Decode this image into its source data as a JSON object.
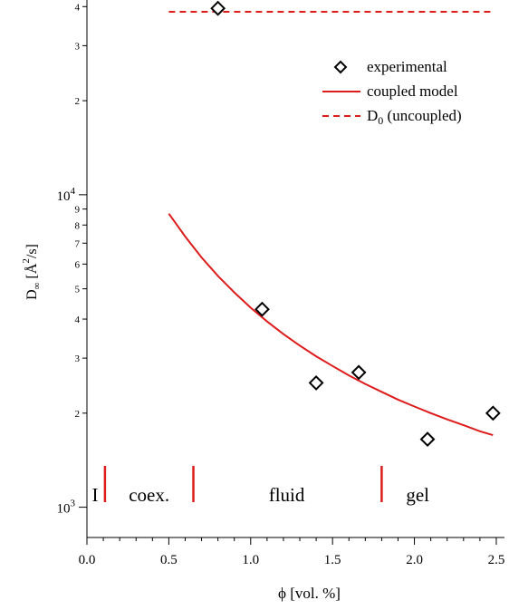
{
  "chart_data": {
    "type": "scatter",
    "xlabel": "ϕ [vol. %]",
    "ylabel": {
      "main": "D",
      "sub": "∞",
      "bracket_open": "[",
      "unit_letter": "Å",
      "unit_sup": "2",
      "unit_rest": "/s]"
    },
    "x_axis": {
      "range": [
        0,
        2.55
      ],
      "ticks": [
        "0.0",
        "0.5",
        "1.0",
        "1.5",
        "2.0",
        "2.5"
      ],
      "tick_values": [
        0,
        0.5,
        1.0,
        1.5,
        2.0,
        2.5
      ]
    },
    "y_axis": {
      "scale": "log",
      "range": [
        800,
        42000
      ],
      "decade_labels": [
        {
          "value": 1000,
          "base": "10",
          "exp": "3"
        },
        {
          "value": 10000,
          "base": "10",
          "exp": "4"
        }
      ],
      "minor_labels": [
        {
          "value": 2000,
          "text": "2"
        },
        {
          "value": 3000,
          "text": "3"
        },
        {
          "value": 4000,
          "text": "4"
        },
        {
          "value": 5000,
          "text": "5"
        },
        {
          "value": 6000,
          "text": "6"
        },
        {
          "value": 7000,
          "text": "7"
        },
        {
          "value": 8000,
          "text": "8"
        },
        {
          "value": 9000,
          "text": "9"
        },
        {
          "value": 20000,
          "text": "2"
        },
        {
          "value": 30000,
          "text": "3"
        },
        {
          "value": 40000,
          "text": "4"
        }
      ]
    },
    "series": [
      {
        "name": "experimental",
        "kind": "scatter",
        "marker": "diamond",
        "color": "#000000",
        "points": [
          {
            "x": 0.8,
            "y": 39500
          },
          {
            "x": 1.07,
            "y": 4300
          },
          {
            "x": 1.4,
            "y": 2500
          },
          {
            "x": 1.66,
            "y": 2700
          },
          {
            "x": 2.08,
            "y": 1650
          },
          {
            "x": 2.48,
            "y": 2000
          }
        ]
      },
      {
        "name": "coupled model",
        "kind": "line",
        "color": "#dd1c1c",
        "dash": "solid",
        "x": [
          0.5,
          0.6,
          0.7,
          0.8,
          0.9,
          1.0,
          1.1,
          1.2,
          1.3,
          1.4,
          1.5,
          1.6,
          1.7,
          1.8,
          1.9,
          2.0,
          2.1,
          2.2,
          2.3,
          2.4,
          2.48
        ],
        "y": [
          8700,
          7350,
          6300,
          5500,
          4870,
          4350,
          3930,
          3580,
          3290,
          3040,
          2830,
          2640,
          2480,
          2340,
          2210,
          2100,
          2000,
          1910,
          1830,
          1750,
          1700
        ]
      },
      {
        "name": "D",
        "name_sub": "0",
        "name_rest": " (uncoupled)",
        "kind": "line",
        "color": "#dd1c1c",
        "dash": "dashed",
        "x": [
          0.5,
          2.48
        ],
        "y": [
          38500,
          38500
        ]
      }
    ],
    "legend": {
      "position": "top-right"
    },
    "regions": [
      {
        "label": "I",
        "x": 0.05
      },
      {
        "label": "coex.",
        "x": 0.38
      },
      {
        "label": "fluid",
        "x": 1.22
      },
      {
        "label": "gel",
        "x": 2.02
      }
    ],
    "region_boundaries": [
      0.11,
      0.65,
      1.8
    ],
    "boundary_color": "#dd1c1c",
    "grid": false
  }
}
